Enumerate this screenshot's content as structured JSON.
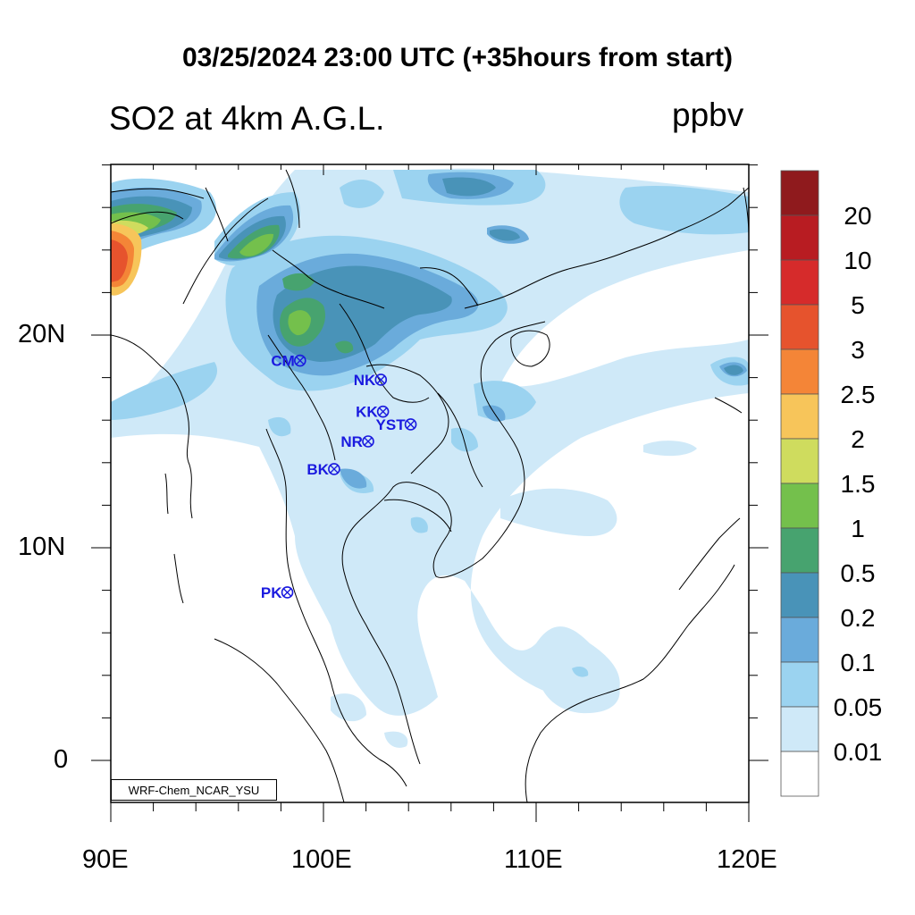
{
  "title": "03/25/2024 23:00 UTC (+35hours from start)",
  "left_title": "SO2 at 4km A.G.L.",
  "right_title": "ppbv",
  "credit": "WRF-Chem_NCAR_YSU",
  "x_ticks": [
    "90E",
    "100E",
    "110E",
    "120E"
  ],
  "y_ticks": [
    "20N",
    "10N",
    "0"
  ],
  "colorbar": {
    "levels": [
      "20",
      "10",
      "5",
      "3",
      "2.5",
      "2",
      "1.5",
      "1",
      "0.5",
      "0.2",
      "0.1",
      "0.05",
      "0.01"
    ],
    "colors": [
      "#8f1a1d",
      "#b81c22",
      "#d62b2b",
      "#e6532d",
      "#f48537",
      "#f7c55a",
      "#cfdc5e",
      "#74c04c",
      "#47a36f",
      "#4993b8",
      "#6aabdb",
      "#9bd3f0",
      "#cfe9f8",
      "#ffffff"
    ]
  },
  "stations": [
    {
      "label": "CM",
      "lon": 98.9,
      "lat": 18.8
    },
    {
      "label": "NK",
      "lon": 102.7,
      "lat": 17.9
    },
    {
      "label": "KK",
      "lon": 102.8,
      "lat": 16.4
    },
    {
      "label": "YST",
      "lon": 104.1,
      "lat": 15.8
    },
    {
      "label": "NR",
      "lon": 102.1,
      "lat": 15.0
    },
    {
      "label": "BK",
      "lon": 100.5,
      "lat": 13.7
    },
    {
      "label": "PK",
      "lon": 98.3,
      "lat": 7.9
    }
  ]
}
